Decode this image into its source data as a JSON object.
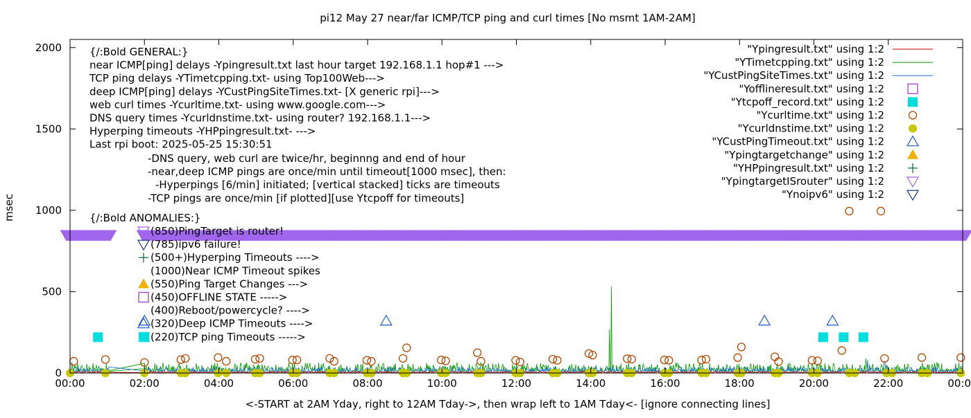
{
  "chart_data": {
    "type": "line",
    "title": "pi12 May 27  near/far ICMP/TCP ping and curl times [No msmt 1AM-2AM]",
    "ylabel": "msec",
    "xlabel": "<-START at 2AM Yday, right to 12AM Tday->, then wrap left to 1AM Tday<- [ignore connecting lines]",
    "ylim": [
      0,
      2050
    ],
    "xlim": [
      0,
      24
    ],
    "y_ticks": [
      0,
      500,
      1000,
      1500,
      2000
    ],
    "x_ticks": [
      "00:00",
      "02:00",
      "04:00",
      "06:00",
      "08:00",
      "10:00",
      "12:00",
      "14:00",
      "16:00",
      "18:00",
      "20:00",
      "22:00",
      "00:00"
    ],
    "grid": false,
    "legend_position": "top-right",
    "legend": [
      {
        "label": "\"Ypingresult.txt\" using 1:2",
        "kind": "line",
        "color": "#cc0000"
      },
      {
        "label": "\"YTimetcpping.txt\" using 1:2",
        "kind": "line",
        "color": "#009900"
      },
      {
        "label": "\"YCustPingSiteTimes.txt\" using 1:2",
        "kind": "line",
        "color": "#1a6ecc"
      },
      {
        "label": "\"Yofflineresult.txt\" using 1:2",
        "kind": "open-square",
        "color": "#9933cc"
      },
      {
        "label": "\"Ytcpoff_record.txt\" using 1:2",
        "kind": "filled-square",
        "color": "#00dddd"
      },
      {
        "label": "\"Ycurltime.txt\" using 1:2",
        "kind": "open-circle",
        "color": "#b34700"
      },
      {
        "label": "\"Ycurldnstime.txt\" using 1:2",
        "kind": "filled-circle",
        "color": "#c8c800"
      },
      {
        "label": "\"YCustPingTimeout.txt\" using 1:2",
        "kind": "open-triangle-up",
        "color": "#1a5acc"
      },
      {
        "label": "\"Ypingtargetchange\" using 1:2",
        "kind": "filled-triangle-up",
        "color": "#f0b000"
      },
      {
        "label": "\"YHPpingresult.txt\" using 1:2",
        "kind": "plus",
        "color": "#006633"
      },
      {
        "label": "\"YpingtargetISrouter\" using 1:2",
        "kind": "open-triangle-down",
        "color": "#a066ee"
      },
      {
        "label": "\"Ynoipv6\" using 1:2",
        "kind": "open-triangle-down",
        "color": "#1a3a8c"
      }
    ],
    "annotations": {
      "general": [
        "{/:Bold GENERAL:}",
        "near ICMP[ping] delays -Ypingresult.txt last hour target 192.168.1.1 hop#1 --->",
        "TCP ping delays -YTimetcpping.txt- using Top100Web--->",
        "deep ICMP[ping] delays -YCustPingSiteTimes.txt- [X generic rpi]--->",
        "web curl times -Ycurltime.txt- using www.google.com--->",
        "DNS query times -Ycurldnstime.txt- using router? 192.168.1.1--->",
        "Hyperping timeouts -YHPpingresult.txt- --->",
        "Last rpi boot: 2025-05-25 15:30:51"
      ],
      "notes": [
        "-DNS query, web curl are twice/hr, beginnng and end of hour",
        "-near,deep ICMP pings are once/min until timeout[1000 msec], then:",
        "-Hyperpings [6/min] initiated; [vertical stacked] ticks are timeouts",
        "-TCP pings are once/min [if plotted][use Ytcpoff for timeouts]"
      ],
      "anomalies_heading": "{/:Bold ANOMALIES:}",
      "anomalies": [
        {
          "text": "(850)PingTarget is router!",
          "marker": "open-triangle-down",
          "color": "#a066ee"
        },
        {
          "text": "(785)ipv6 failure!",
          "marker": "open-triangle-down",
          "color": "#1a3a8c"
        },
        {
          "text": "(500+)Hyperping Timeouts ---->",
          "marker": "plus",
          "color": "#006633"
        },
        {
          "text": "(1000)Near ICMP Timeout spikes",
          "marker": "none",
          "color": "#000000"
        },
        {
          "text": "(550)Ping Target Changes --->",
          "marker": "filled-triangle-up",
          "color": "#f0b000"
        },
        {
          "text": "(450)OFFLINE STATE ----->",
          "marker": "open-square",
          "color": "#9933cc"
        },
        {
          "text": "(400)Reboot/powercycle? ---->",
          "marker": "none",
          "color": "#000000"
        },
        {
          "text": "(320)Deep ICMP Timeouts ---->",
          "marker": "open-triangle-up",
          "color": "#1a5acc"
        },
        {
          "text": "(220)TCP ping Timeouts ----->",
          "marker": "filled-square",
          "color": "#00dddd"
        }
      ]
    },
    "series": [
      {
        "name": "\"YpingtargetISrouter\" using 1:2",
        "kind": "band-triangles",
        "y": 850,
        "ranges": [
          [
            -0.1,
            1.1
          ],
          [
            1.95,
            24.1
          ]
        ]
      },
      {
        "name": "\"Ytcpoff_record.txt\" using 1:2",
        "points": [
          [
            0.75,
            220
          ],
          [
            2.0,
            220
          ],
          [
            20.25,
            220
          ],
          [
            20.8,
            220
          ],
          [
            21.33,
            220
          ]
        ]
      },
      {
        "name": "\"YCustPingTimeout.txt\" using 1:2",
        "points": [
          [
            2.0,
            320
          ],
          [
            8.5,
            320
          ],
          [
            18.67,
            320
          ],
          [
            20.5,
            320
          ]
        ]
      },
      {
        "name": "\"Ycurltime.txt\" using 1:2",
        "points": [
          [
            0.1,
            72
          ],
          [
            0.95,
            83
          ],
          [
            2.0,
            65
          ],
          [
            2.98,
            82
          ],
          [
            3.1,
            90
          ],
          [
            3.98,
            95
          ],
          [
            4.2,
            72
          ],
          [
            4.98,
            85
          ],
          [
            5.1,
            90
          ],
          [
            5.98,
            80
          ],
          [
            6.1,
            80
          ],
          [
            6.98,
            90
          ],
          [
            7.1,
            72
          ],
          [
            7.98,
            78
          ],
          [
            8.1,
            72
          ],
          [
            8.95,
            90
          ],
          [
            9.05,
            155
          ],
          [
            9.98,
            80
          ],
          [
            10.1,
            75
          ],
          [
            10.95,
            125
          ],
          [
            11.05,
            72
          ],
          [
            11.98,
            78
          ],
          [
            12.1,
            68
          ],
          [
            12.98,
            85
          ],
          [
            13.1,
            78
          ],
          [
            13.95,
            120
          ],
          [
            14.05,
            110
          ],
          [
            14.98,
            88
          ],
          [
            15.1,
            85
          ],
          [
            15.98,
            80
          ],
          [
            16.1,
            78
          ],
          [
            16.98,
            80
          ],
          [
            17.1,
            85
          ],
          [
            17.95,
            95
          ],
          [
            18.05,
            160
          ],
          [
            18.95,
            100
          ],
          [
            19.05,
            70
          ],
          [
            19.95,
            78
          ],
          [
            20.1,
            75
          ],
          [
            20.75,
            138
          ],
          [
            20.95,
            995
          ],
          [
            21.8,
            995
          ],
          [
            21.9,
            90
          ],
          [
            22.9,
            95
          ],
          [
            23.95,
            95
          ]
        ]
      },
      {
        "name": "\"Ycurldnstime.txt\" using 1:2",
        "points": [
          [
            0.0,
            0
          ],
          [
            0.95,
            0
          ],
          [
            2.0,
            0
          ],
          [
            2.98,
            0
          ],
          [
            3.1,
            0
          ],
          [
            3.98,
            0
          ],
          [
            4.2,
            0
          ],
          [
            4.98,
            0
          ],
          [
            5.1,
            0
          ],
          [
            5.98,
            0
          ],
          [
            6.1,
            0
          ],
          [
            6.98,
            0
          ],
          [
            7.1,
            0
          ],
          [
            7.98,
            0
          ],
          [
            8.1,
            0
          ],
          [
            8.95,
            0
          ],
          [
            9.05,
            0
          ],
          [
            9.98,
            0
          ],
          [
            10.1,
            0
          ],
          [
            10.95,
            0
          ],
          [
            11.05,
            0
          ],
          [
            11.98,
            0
          ],
          [
            12.1,
            0
          ],
          [
            12.98,
            0
          ],
          [
            13.1,
            0
          ],
          [
            13.95,
            0
          ],
          [
            14.05,
            0
          ],
          [
            14.98,
            0
          ],
          [
            15.1,
            0
          ],
          [
            15.98,
            0
          ],
          [
            16.1,
            0
          ],
          [
            16.98,
            0
          ],
          [
            17.1,
            0
          ],
          [
            17.95,
            0
          ],
          [
            18.05,
            0
          ],
          [
            18.95,
            0
          ],
          [
            19.05,
            0
          ],
          [
            19.95,
            0
          ],
          [
            20.1,
            0
          ],
          [
            20.95,
            0
          ],
          [
            21.1,
            0
          ],
          [
            21.95,
            0
          ],
          [
            22.1,
            0
          ],
          [
            22.9,
            0
          ],
          [
            23.05,
            0
          ],
          [
            23.95,
            0
          ]
        ]
      },
      {
        "name": "\"YTimetcpping.txt\" using 1:2",
        "kind": "noise",
        "color": "#009900",
        "base": 10,
        "spread": 55,
        "spikes": [
          [
            0.2,
            60
          ],
          [
            2.0,
            60
          ],
          [
            14.55,
            530
          ],
          [
            14.5,
            270
          ],
          [
            18.3,
            55
          ],
          [
            21.4,
            90
          ]
        ]
      },
      {
        "name": "\"YCustPingSiteTimes.txt\" using 1:2",
        "kind": "noise",
        "color": "#1a6ecc",
        "base": 8,
        "spread": 30,
        "spikes": [
          [
            21.45,
            80
          ],
          [
            21.9,
            70
          ]
        ]
      },
      {
        "name": "\"Ypingresult.txt\" using 1:2",
        "kind": "noise",
        "color": "#cc0000",
        "base": 3,
        "spread": 8,
        "spikes": []
      }
    ]
  }
}
